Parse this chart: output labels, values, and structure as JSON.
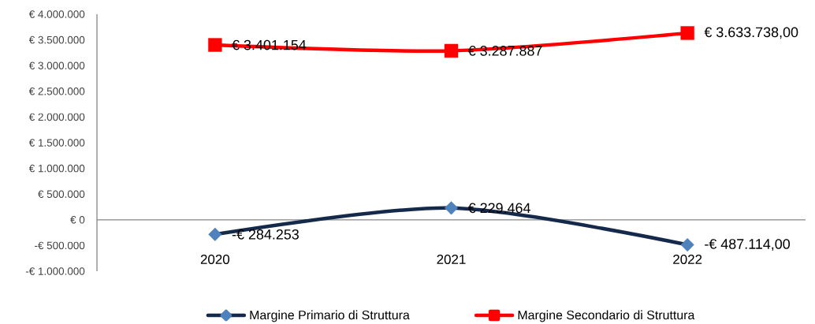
{
  "chart_data": {
    "type": "line",
    "categories": [
      "2020",
      "2021",
      "2022"
    ],
    "series": [
      {
        "name": "Margine Primario di Struttura",
        "color": "#15294a",
        "colors": [
          "#4f81bd",
          "#4f81bd",
          "#4f81bd"
        ],
        "marker": "diamond",
        "values": [
          -284253,
          229464,
          -487114
        ],
        "value_labels": [
          "-€ 284.253",
          "€ 229.464",
          "-€ 487.114,00"
        ]
      },
      {
        "name": "Margine Secondario di Struttura",
        "color": "#ff0000",
        "marker": "square",
        "values": [
          3401154,
          3287887,
          3633738
        ],
        "value_labels": [
          "€ 3.401.154",
          "€ 3.287.887",
          "€ 3.633.738,00"
        ]
      }
    ],
    "ylim": [
      -1000000,
      4000000
    ],
    "yticks": [
      {
        "value": -1000000,
        "label": "-€ 1.000.000"
      },
      {
        "value": -500000,
        "label": "-€ 500.000"
      },
      {
        "value": 0,
        "label": "€ 0"
      },
      {
        "value": 500000,
        "label": "€ 500.000"
      },
      {
        "value": 1000000,
        "label": "€ 1.000.000"
      },
      {
        "value": 1500000,
        "label": "€ 1.500.000"
      },
      {
        "value": 2000000,
        "label": "€ 2.000.000"
      },
      {
        "value": 2500000,
        "label": "€ 2.500.000"
      },
      {
        "value": 3000000,
        "label": "€ 3.000.000"
      },
      {
        "value": 3500000,
        "label": "€ 3.500.000"
      },
      {
        "value": 4000000,
        "label": "€ 4.000.000"
      }
    ],
    "legend": "bottom",
    "line_style": "solid"
  }
}
